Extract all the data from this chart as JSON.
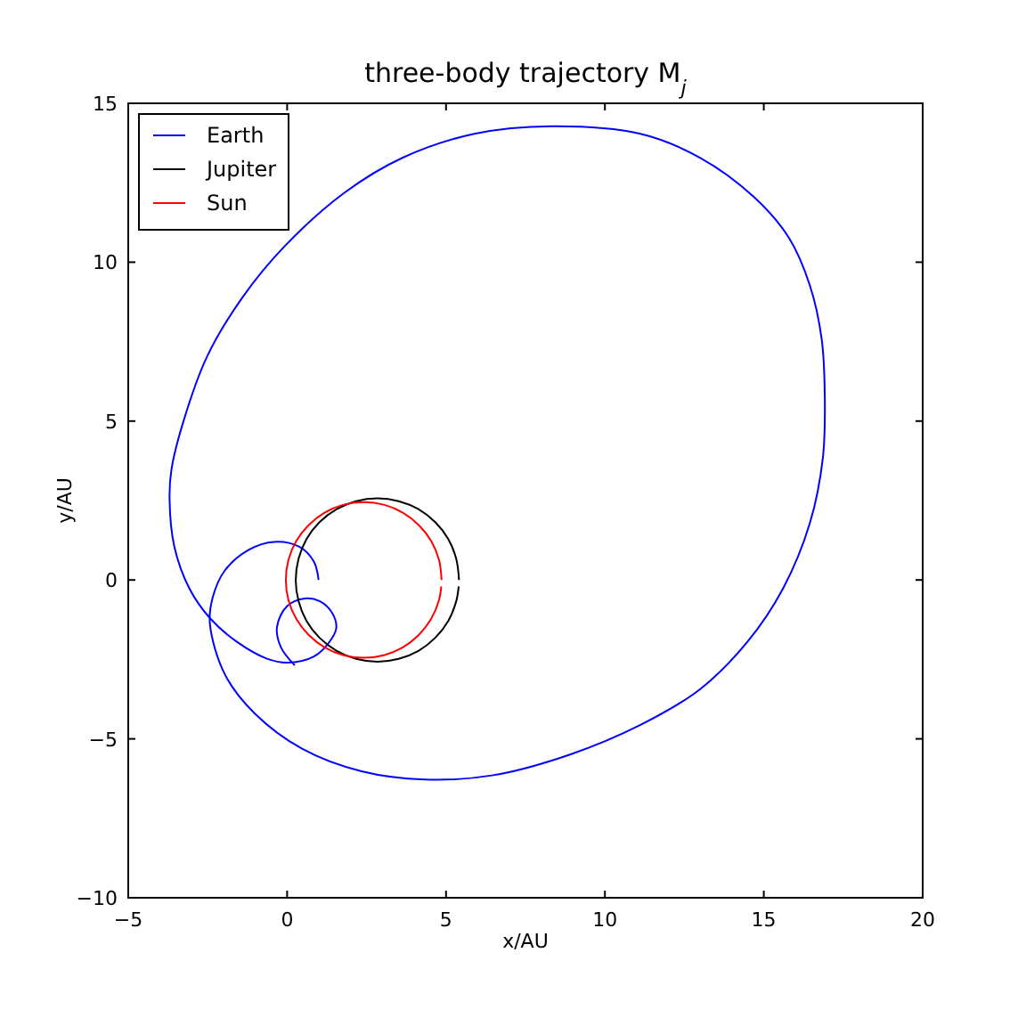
{
  "chart_data": {
    "type": "line",
    "title": "three-body trajectory M$_{j}$",
    "xlabel": "x/AU",
    "ylabel": "y/AU",
    "xlim": [
      -5,
      20
    ],
    "ylim": [
      -10,
      15
    ],
    "xticks": [
      -5,
      0,
      5,
      10,
      15,
      20
    ],
    "yticks": [
      -10,
      -5,
      0,
      5,
      10,
      15
    ],
    "legend": "top left",
    "series": [
      {
        "name": "Earth",
        "color": "#0000ff",
        "x": [
          0.99,
          0.84,
          0.37,
          -0.41,
          -1.21,
          -1.96,
          -2.34,
          -2.43,
          -1.96,
          -1.03,
          0.47,
          2.34,
          4.34,
          6.45,
          8.88,
          11.12,
          12.99,
          14.49,
          15.61,
          16.45,
          16.86,
          16.92,
          16.82,
          16.45,
          15.79,
          14.67,
          12.99,
          11.12,
          8.32,
          5.89,
          3.64,
          1.78,
          -0.09,
          -1.4,
          -2.52,
          -3.27,
          -3.64,
          -3.7,
          -3.55,
          -3.08,
          -2.43,
          -1.59,
          -0.65,
          0,
          0.84,
          1.4,
          1.55,
          1.4,
          1.03,
          0.56,
          0,
          -0.32,
          -0.19,
          0.24
        ],
        "values": [
          0,
          0.58,
          1.05,
          1.2,
          0.95,
          0.3,
          -0.54,
          -1.38,
          -2.97,
          -4.19,
          -5.31,
          -6.02,
          -6.28,
          -6.15,
          -5.5,
          -4.56,
          -3.44,
          -1.94,
          -0.26,
          1.79,
          3.85,
          5.72,
          7.59,
          9.27,
          10.77,
          12.07,
          13.29,
          14.04,
          14.28,
          14.04,
          13.29,
          12.17,
          10.49,
          8.9,
          7.03,
          4.97,
          3.48,
          2.54,
          1.05,
          -0.26,
          -1.2,
          -1.94,
          -2.47,
          -2.6,
          -2.41,
          -1.85,
          -1.48,
          -1.01,
          -0.67,
          -0.58,
          -0.82,
          -1.48,
          -2.13,
          -2.69
        ]
      },
      {
        "name": "Jupiter",
        "color": "#000000",
        "x": [
          5.41,
          5.32,
          5.07,
          4.66,
          4.13,
          3.51,
          2.84,
          2.17,
          1.56,
          1.02,
          0.61,
          0.36,
          0.27,
          0.36,
          0.61,
          1.02,
          1.56,
          2.17,
          2.84,
          3.51,
          4.13,
          4.66,
          5.07,
          5.32,
          5.4
        ],
        "values": [
          0,
          0.67,
          1.29,
          1.82,
          2.23,
          2.48,
          2.57,
          2.48,
          2.23,
          1.82,
          1.29,
          0.67,
          0,
          -0.67,
          -1.29,
          -1.82,
          -2.23,
          -2.48,
          -2.57,
          -2.48,
          -2.23,
          -1.82,
          -1.29,
          -0.67,
          -0.2
        ]
      },
      {
        "name": "Sun",
        "color": "#ff0000",
        "x": [
          4.86,
          4.78,
          4.53,
          4.14,
          3.64,
          3.04,
          2.41,
          1.78,
          1.18,
          0.68,
          0.29,
          0.04,
          -0.04,
          0.04,
          0.29,
          0.68,
          1.18,
          1.78,
          2.41,
          3.04,
          3.64,
          4.14,
          4.53,
          4.78,
          4.85
        ],
        "values": [
          0,
          0.63,
          1.23,
          1.73,
          2.12,
          2.37,
          2.45,
          2.37,
          2.12,
          1.73,
          1.23,
          0.63,
          0,
          -0.63,
          -1.23,
          -1.73,
          -2.12,
          -2.37,
          -2.45,
          -2.37,
          -2.12,
          -1.73,
          -1.23,
          -0.63,
          -0.2
        ]
      }
    ]
  }
}
